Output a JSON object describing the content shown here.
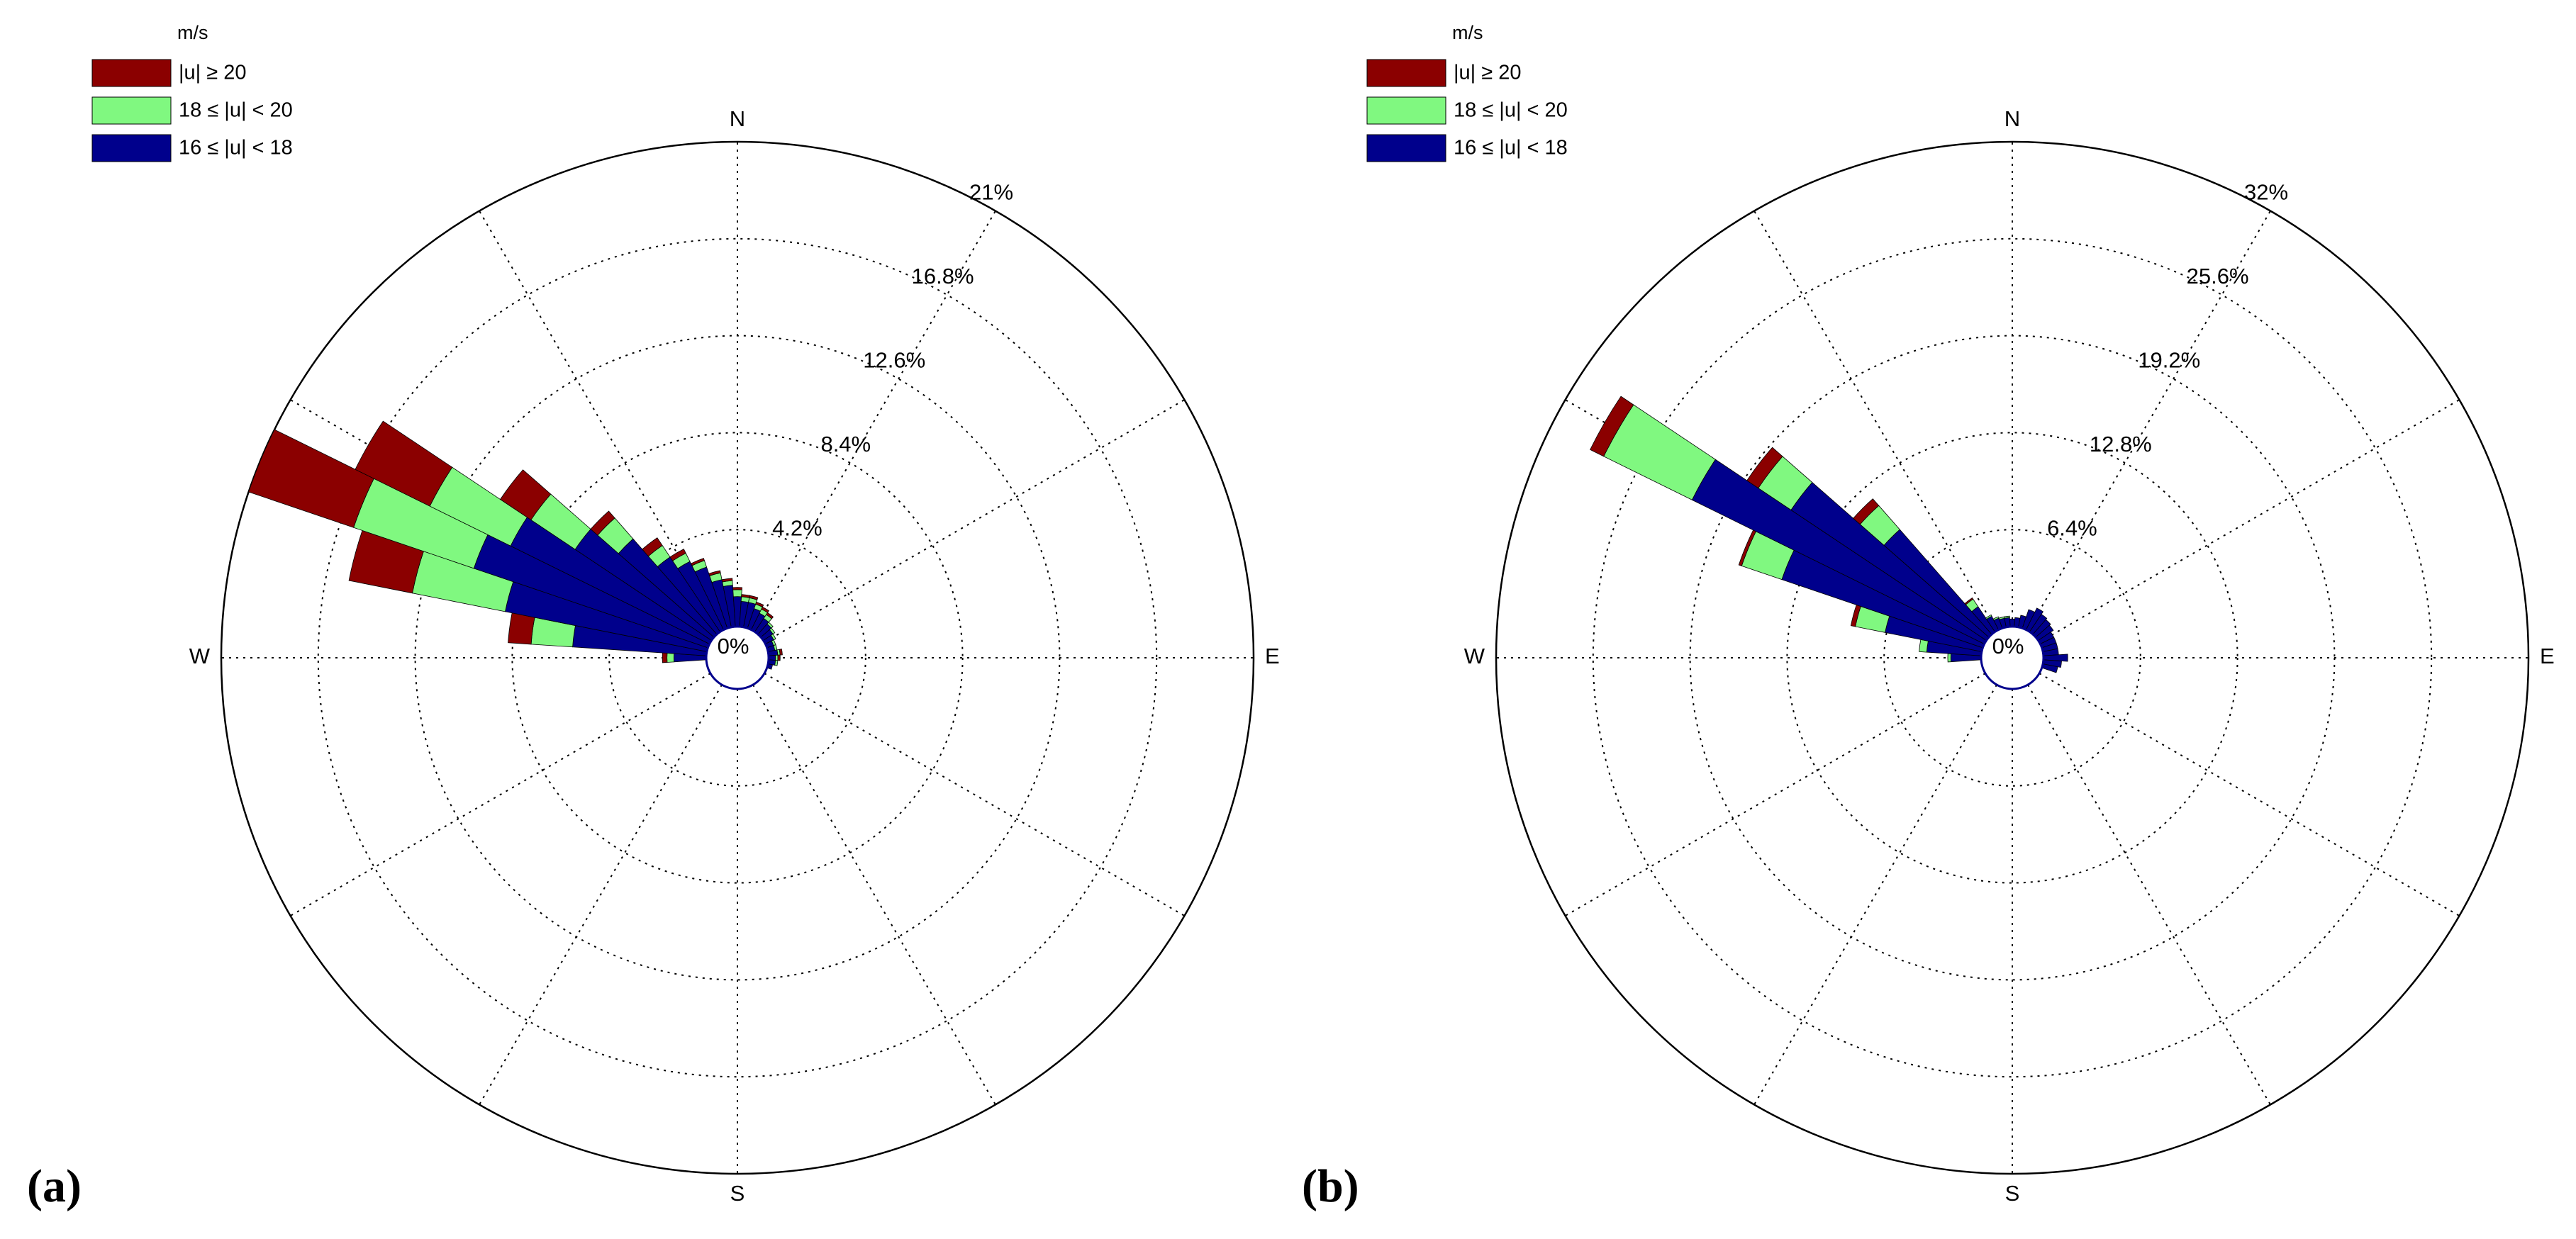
{
  "colors": {
    "speed_high": "#8b0000",
    "speed_mid": "#80f880",
    "speed_low": "#00008c",
    "grid": "#000000",
    "background": "#ffffff"
  },
  "chart_data": [
    {
      "type": "wind_rose",
      "panel_label": "(a)",
      "legend_title": "m/s",
      "legend": [
        "|u| ≥ 20",
        "18 ≤ |u| < 20",
        "16 ≤ |u| < 18"
      ],
      "compass_labels": [
        "N",
        "E",
        "S",
        "W"
      ],
      "center_label": "0%",
      "ring_labels": [
        "4.2%",
        "8.4%",
        "12.6%",
        "16.8%",
        "21%"
      ],
      "rmax": 21,
      "directions_deg": [
        270,
        277.5,
        285,
        292.5,
        300,
        307.5,
        315,
        322.5,
        330,
        337.5,
        345,
        352.5,
        0,
        7.5,
        15,
        22.5,
        30,
        37.5,
        45,
        52.5,
        60,
        67.5,
        75,
        82.5,
        90,
        97.5,
        105
      ],
      "series": [
        {
          "name": "16 ≤ |u| < 18",
          "values": [
            1.4,
            5.8,
            8.9,
            10.7,
            9.6,
            7.1,
            5.5,
            3.9,
            3.3,
            2.8,
            2.1,
            1.8,
            1.3,
            1.1,
            1.1,
            0.9,
            0.8,
            0.7,
            0.6,
            0.5,
            0.4,
            0.3,
            0.3,
            0.4,
            0.3,
            0.3,
            0.2
          ]
        },
        {
          "name": "18 ≤ |u| < 20",
          "values": [
            0.3,
            1.8,
            4.1,
            5.5,
            3.9,
            2.3,
            1.2,
            0.6,
            0.4,
            0.3,
            0.3,
            0.2,
            0.3,
            0.2,
            0.2,
            0.2,
            0.2,
            0.2,
            0.1,
            0.1,
            0.1,
            0.1,
            0.1,
            0.1,
            0.1,
            0.1,
            0.0
          ]
        },
        {
          "name": "|u| ≥ 20",
          "values": [
            0.2,
            1.0,
            2.8,
            4.8,
            3.6,
            1.6,
            0.4,
            0.4,
            0.2,
            0.1,
            0.1,
            0.1,
            0.1,
            0.1,
            0.1,
            0.1,
            0.1,
            0.1,
            0.0,
            0.0,
            0.0,
            0.0,
            0.0,
            0.1,
            0.1,
            0.0,
            0.0
          ]
        }
      ]
    },
    {
      "type": "wind_rose",
      "panel_label": "(b)",
      "legend_title": "m/s",
      "legend": [
        "|u| ≥ 20",
        "18 ≤ |u| < 20",
        "16 ≤ |u| < 18"
      ],
      "compass_labels": [
        "N",
        "E",
        "S",
        "W"
      ],
      "center_label": "0%",
      "ring_labels": [
        "6.4%",
        "12.8%",
        "19.2%",
        "25.6%",
        "32%"
      ],
      "rmax": 32,
      "directions_deg": [
        270,
        277.5,
        285,
        292.5,
        300,
        307.5,
        315,
        322.5,
        330,
        337.5,
        345,
        352.5,
        0,
        7.5,
        15,
        22.5,
        30,
        37.5,
        45,
        52.5,
        60,
        67.5,
        75,
        82.5,
        90,
        97.5,
        105
      ],
      "series": [
        {
          "name": "16 ≤ |u| < 18",
          "values": [
            2.0,
            3.6,
            6.5,
            14.0,
            21.5,
            15.5,
            9.2,
            2.0,
            1.0,
            0.7,
            0.6,
            0.6,
            0.5,
            0.6,
            0.8,
            1.3,
            1.6,
            1.4,
            1.3,
            1.2,
            1.0,
            1.0,
            1.0,
            1.0,
            1.6,
            1.2,
            1.0
          ]
        },
        {
          "name": "18 ≤ |u| < 20",
          "values": [
            0.2,
            0.5,
            2.0,
            2.8,
            6.5,
            2.6,
            2.1,
            0.6,
            0.1,
            0.1,
            0.1,
            0.1,
            0.0,
            0.0,
            0.0,
            0.0,
            0.0,
            0.0,
            0.0,
            0.0,
            0.0,
            0.0,
            0.0,
            0.0,
            0.0,
            0.0,
            0.0
          ]
        },
        {
          "name": "|u| ≥ 20",
          "values": [
            0.0,
            0.0,
            0.3,
            0.2,
            1.0,
            0.9,
            0.6,
            0.1,
            0.0,
            0.0,
            0.0,
            0.0,
            0.0,
            0.0,
            0.0,
            0.0,
            0.0,
            0.0,
            0.0,
            0.0,
            0.0,
            0.0,
            0.0,
            0.0,
            0.0,
            0.0,
            0.0
          ]
        }
      ]
    }
  ]
}
